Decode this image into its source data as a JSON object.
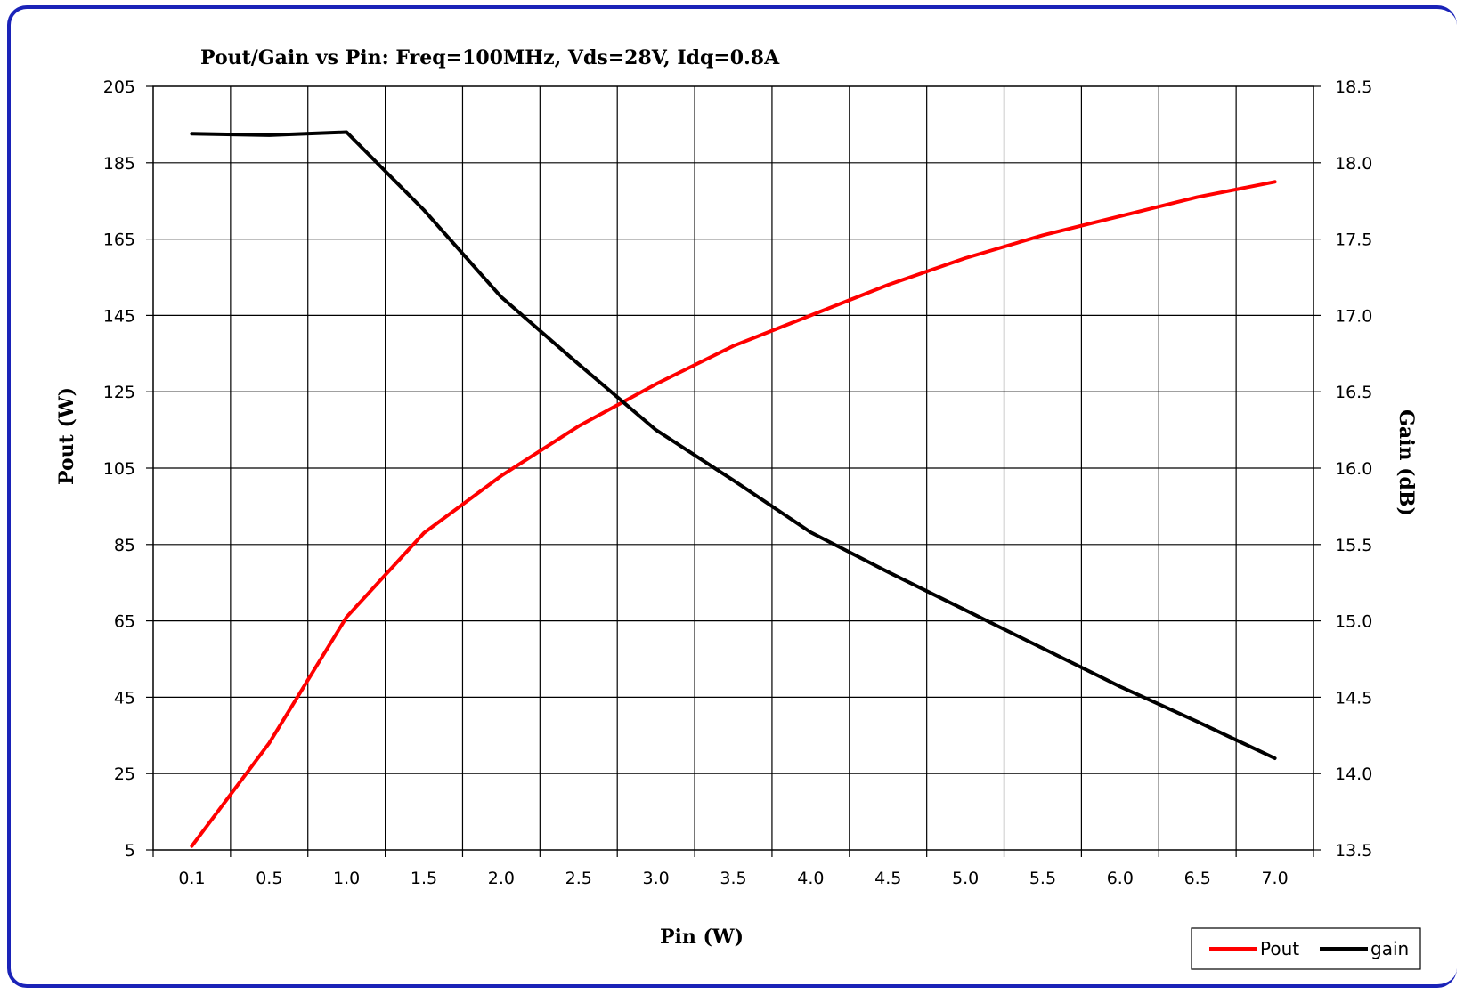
{
  "chart_data": {
    "type": "line",
    "title": "Pout/Gain vs Pin: Freq=100MHz, Vds=28V, Idq=0.8A",
    "xlabel": "Pin (W)",
    "ylabel": "Pout (W)",
    "y2label": "Gain (dB)",
    "categories": [
      "0.1",
      "0.5",
      "1.0",
      "1.5",
      "2.0",
      "2.5",
      "3.0",
      "3.5",
      "4.0",
      "4.5",
      "5.0",
      "5.5",
      "6.0",
      "6.5",
      "7.0"
    ],
    "ylim": [
      5,
      205
    ],
    "yticks": [
      "205",
      "185",
      "165",
      "145",
      "125",
      "105",
      "85",
      "65",
      "45",
      "25",
      "5"
    ],
    "y2lim": [
      13.5,
      18.5
    ],
    "y2ticks": [
      "18.5",
      "18.0",
      "17.5",
      "17.0",
      "16.5",
      "16.0",
      "15.5",
      "15.0",
      "14.5",
      "14.0",
      "13.5"
    ],
    "grid": true,
    "legend_position": "bottom-right",
    "series": [
      {
        "name": "Pout",
        "axis": "left",
        "color": "#ff0000",
        "values": [
          6,
          33,
          66,
          88,
          103,
          116,
          127,
          137,
          145,
          153,
          160,
          166,
          171,
          176,
          180
        ]
      },
      {
        "name": "gain",
        "axis": "right",
        "color": "#000000",
        "values": [
          18.19,
          18.18,
          18.2,
          17.69,
          17.12,
          16.68,
          16.25,
          15.92,
          15.58,
          15.32,
          15.07,
          14.82,
          14.57,
          14.34,
          14.1
        ]
      }
    ]
  }
}
